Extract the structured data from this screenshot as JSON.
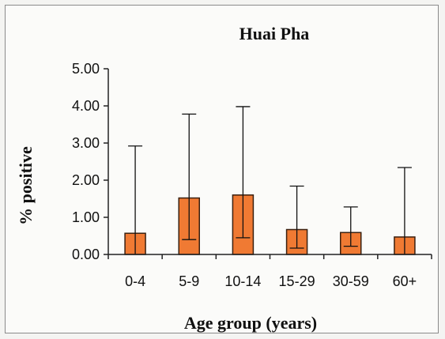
{
  "chart_data": {
    "type": "bar",
    "title": "Huai Pha",
    "xlabel": "Age group (years)",
    "ylabel": "% positive",
    "categories": [
      "0-4",
      "5-9",
      "10-14",
      "15-29",
      "30-59",
      "60+"
    ],
    "values": [
      0.57,
      1.52,
      1.6,
      0.67,
      0.59,
      0.47
    ],
    "error_low": [
      0.0,
      0.4,
      0.45,
      0.17,
      0.22,
      0.0
    ],
    "error_high": [
      2.92,
      3.78,
      3.98,
      1.84,
      1.28,
      2.34
    ],
    "ylim": [
      0,
      5
    ],
    "yticks": [
      "0.00",
      "1.00",
      "2.00",
      "3.00",
      "4.00",
      "5.00"
    ],
    "grid": false,
    "legend": "none",
    "bar_color": "#f07a33",
    "bar_edge_color": "#3a2010"
  }
}
